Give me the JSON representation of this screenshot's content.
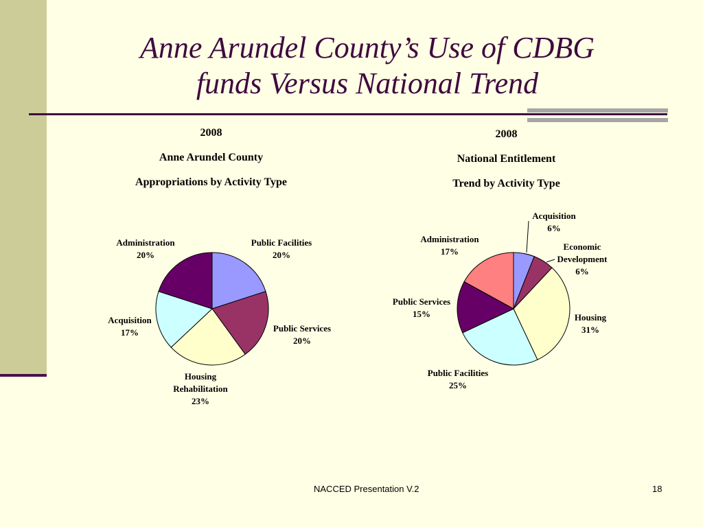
{
  "slide": {
    "title_line1": "Anne Arundel County’s Use of CDBG",
    "title_line2": "funds Versus National Trend",
    "footer": "NACCED Presentation V.2",
    "page_number": "18"
  },
  "chart_data": [
    {
      "type": "pie",
      "heading": [
        "2008",
        "Anne Arundel County",
        "Appropriations by Activity Type"
      ],
      "slices": [
        {
          "label": "Public Facilities",
          "value": 20,
          "color": "#9999FF"
        },
        {
          "label": "Public Services",
          "value": 20,
          "color": "#993366"
        },
        {
          "label": "Housing Rehabilitation",
          "value": 23,
          "color": "#FFFFCC"
        },
        {
          "label": "Acquisition",
          "value": 17,
          "color": "#CCFFFF"
        },
        {
          "label": "Administration",
          "value": 20,
          "color": "#660066"
        }
      ]
    },
    {
      "type": "pie",
      "heading": [
        "2008",
        "National Entitlement",
        "Trend by Activity Type"
      ],
      "slices": [
        {
          "label": "Acquisition",
          "value": 6,
          "color": "#9999FF"
        },
        {
          "label": "Economic Development",
          "value": 6,
          "color": "#993366"
        },
        {
          "label": "Housing",
          "value": 31,
          "color": "#FFFFCC"
        },
        {
          "label": "Public Facilities",
          "value": 25,
          "color": "#CCFFFF"
        },
        {
          "label": "Public Services",
          "value": 15,
          "color": "#660066"
        },
        {
          "label": "Administration",
          "value": 17,
          "color": "#FF8080"
        }
      ]
    }
  ]
}
